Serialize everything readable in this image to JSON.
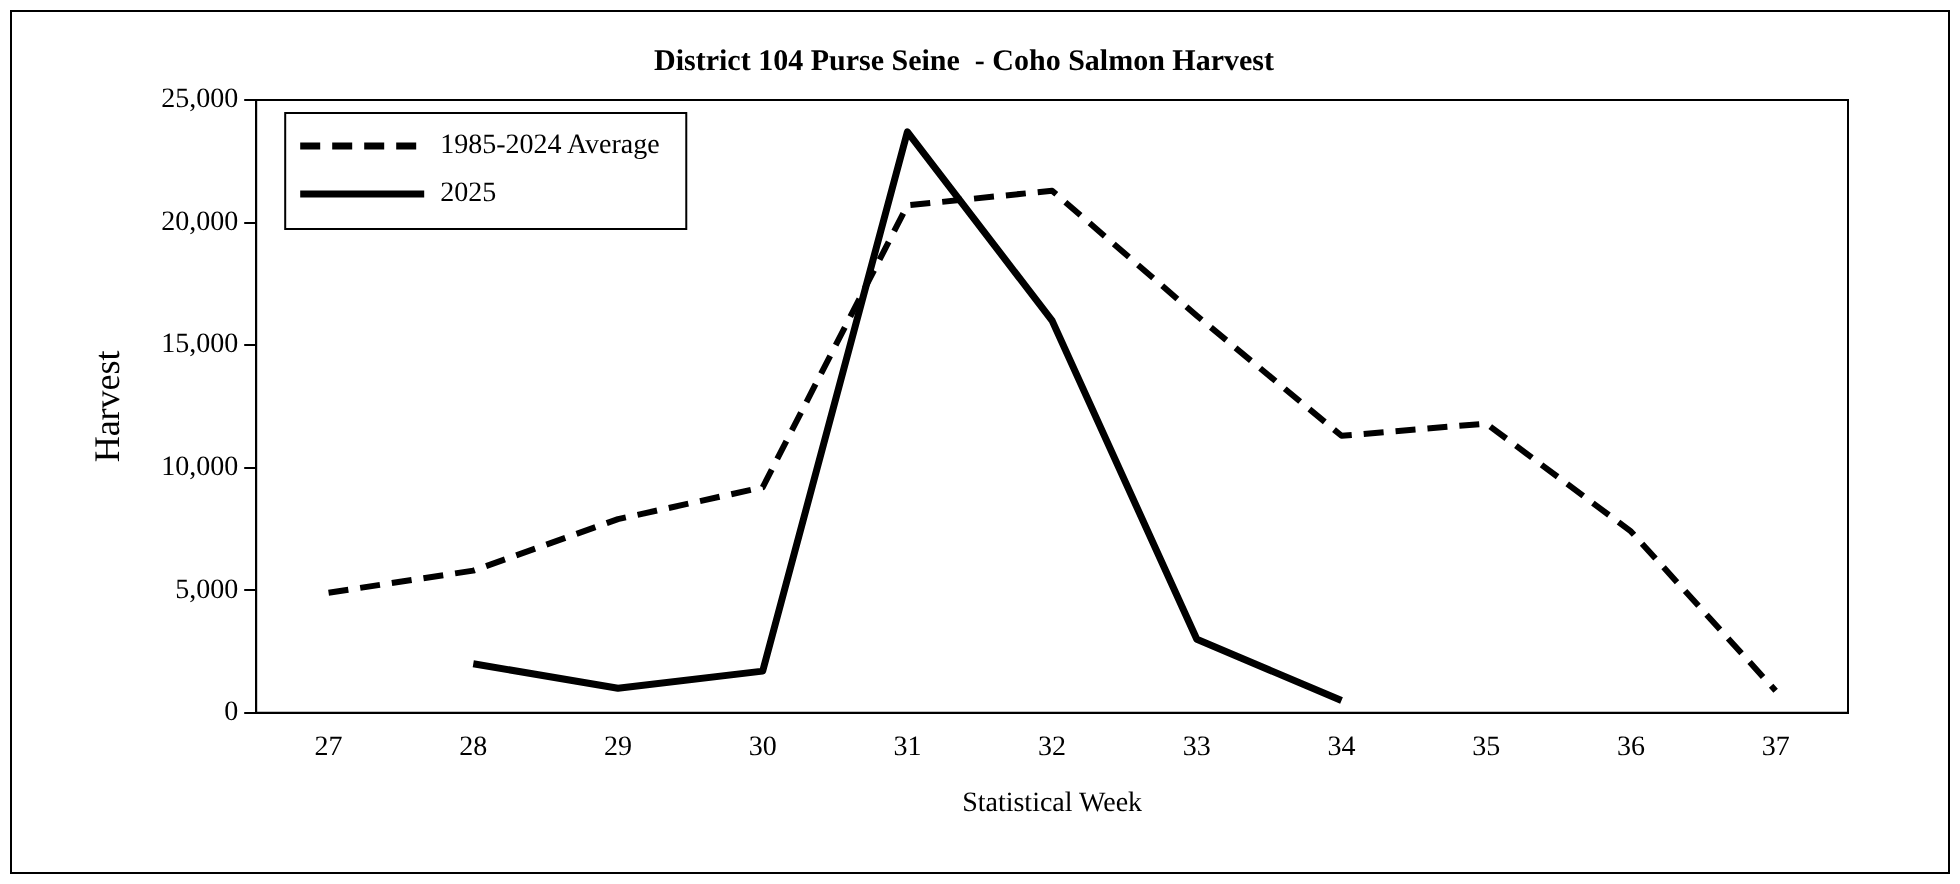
{
  "chart_data": {
    "type": "line",
    "title": "District 104 Purse Seine  - Coho Salmon Harvest",
    "xlabel": "Statistical Week",
    "ylabel": "Harvest",
    "categories": [
      "27",
      "28",
      "29",
      "30",
      "31",
      "32",
      "33",
      "34",
      "35",
      "36",
      "37"
    ],
    "series": [
      {
        "name": "1985-2024 Average",
        "color": "#000000",
        "line_style": "dashed",
        "values": [
          4900,
          5800,
          7900,
          9200,
          20700,
          21300,
          16200,
          11300,
          11800,
          7400,
          900
        ]
      },
      {
        "name": "2025",
        "color": "#000000",
        "line_style": "solid",
        "values": [
          null,
          2000,
          1000,
          1700,
          23700,
          16000,
          3000,
          500,
          null,
          null,
          null
        ]
      }
    ],
    "ylim": [
      0,
      25000
    ],
    "yticks": [
      0,
      {
        "value": 5000,
        "label": "5,000"
      },
      {
        "value": 10000,
        "label": "10,000"
      },
      {
        "value": 15000,
        "label": "15,000"
      },
      {
        "value": 20000,
        "label": "20,000"
      },
      {
        "value": 25000,
        "label": "25,000"
      }
    ],
    "grid": false,
    "legend": "top left",
    "marker": "none"
  }
}
